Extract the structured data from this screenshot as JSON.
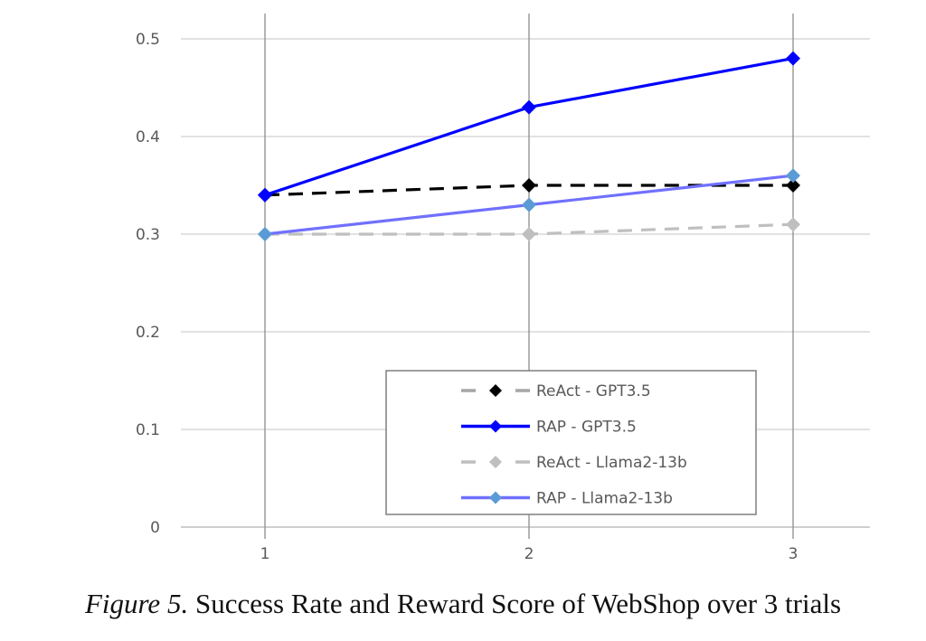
{
  "chart_data": {
    "type": "line",
    "title": "",
    "xlabel": "",
    "ylabel": "",
    "x": [
      1,
      2,
      3
    ],
    "x_tick_labels": [
      "1",
      "2",
      "3"
    ],
    "ylim": [
      0,
      0.5
    ],
    "y_tick_labels": [
      "0",
      "0.1",
      "0.2",
      "0.3",
      "0.4",
      "0.5"
    ],
    "grid": true,
    "legend_position": "bottom-right",
    "series": [
      {
        "name": "ReAct - GPT3.5",
        "values": [
          0.34,
          0.35,
          0.35
        ],
        "line_color": "#000000",
        "marker_color": "#000000",
        "dashed": true
      },
      {
        "name": "RAP - GPT3.5",
        "values": [
          0.34,
          0.43,
          0.48
        ],
        "line_color": "#0000ff",
        "marker_color": "#0000ff",
        "dashed": false
      },
      {
        "name": "ReAct - Llama2-13b",
        "values": [
          0.3,
          0.3,
          0.31
        ],
        "line_color": "#bfbfbf",
        "marker_color": "#bfbfbf",
        "dashed": true
      },
      {
        "name": "RAP - Llama2-13b",
        "values": [
          0.3,
          0.33,
          0.36
        ],
        "line_color": "#7070ff",
        "marker_color": "#5b9bd5",
        "dashed": false
      }
    ],
    "legend_dash_color": "#a6a6a6"
  },
  "caption": {
    "label": "Figure 5.",
    "text": " Success Rate and Reward Score of WebShop over 3 trials"
  }
}
